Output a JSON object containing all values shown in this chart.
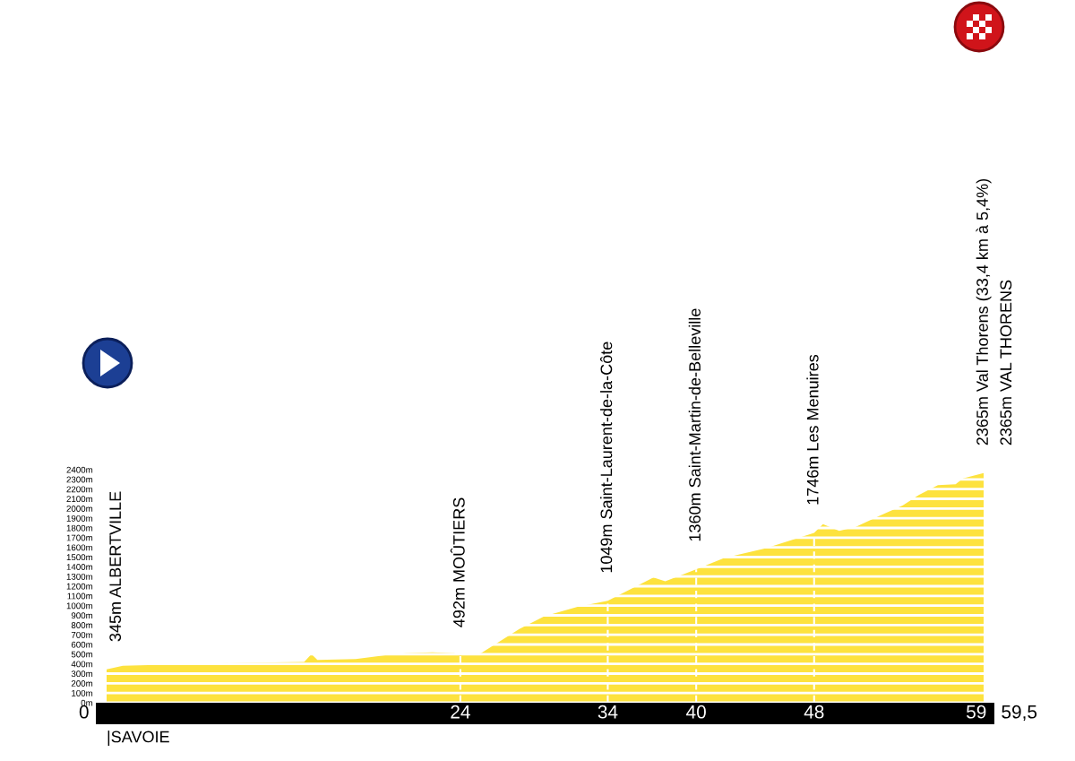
{
  "chart_data": {
    "type": "area",
    "x": [
      0,
      1.1,
      5.7,
      9.2,
      13.4,
      13.9,
      14.3,
      16.9,
      19.5,
      20.3,
      22.1,
      23.6,
      24,
      25.4,
      28,
      29.7,
      32,
      34,
      37.1,
      37.9,
      40.1,
      41.9,
      44.7,
      47,
      48,
      48.6,
      49.7,
      50.8,
      52.5,
      54,
      55.1,
      56.4,
      57.6,
      58.1,
      59.5
    ],
    "values": [
      345,
      380,
      400,
      410,
      420,
      500,
      440,
      450,
      500,
      510,
      520,
      510,
      490,
      510,
      760,
      890,
      990,
      1050,
      1290,
      1250,
      1380,
      1490,
      1590,
      1700,
      1750,
      1840,
      1770,
      1810,
      1930,
      2030,
      2140,
      2240,
      2250,
      2310,
      2365
    ],
    "color": "#fde23e",
    "xlim": [
      0,
      59.5
    ],
    "xticks": [
      24,
      34,
      40,
      48,
      59
    ],
    "ylim": [
      0,
      2400
    ],
    "yticks": [
      {
        "value": 0,
        "label": "0m"
      },
      {
        "value": 100,
        "label": "100m"
      },
      {
        "value": 200,
        "label": "200m"
      },
      {
        "value": 300,
        "label": "300m"
      },
      {
        "value": 400,
        "label": "400m"
      },
      {
        "value": 500,
        "label": "500m"
      },
      {
        "value": 600,
        "label": "600m"
      },
      {
        "value": 700,
        "label": "700m"
      },
      {
        "value": 800,
        "label": "800m"
      },
      {
        "value": 900,
        "label": "900m"
      },
      {
        "value": 1000,
        "label": "1000m"
      },
      {
        "value": 1100,
        "label": "1100m"
      },
      {
        "value": 1200,
        "label": "1200m"
      },
      {
        "value": 1300,
        "label": "1300m"
      },
      {
        "value": 1400,
        "label": "1400m"
      },
      {
        "value": 1500,
        "label": "1500m"
      },
      {
        "value": 1600,
        "label": "1600m"
      },
      {
        "value": 1700,
        "label": "1700m"
      },
      {
        "value": 1800,
        "label": "1800m"
      },
      {
        "value": 1900,
        "label": "1900m"
      },
      {
        "value": 2000,
        "label": "2000m"
      },
      {
        "value": 2100,
        "label": "2100m"
      },
      {
        "value": 2200,
        "label": "2200m"
      },
      {
        "value": 2300,
        "label": "2300m"
      },
      {
        "value": 2400,
        "label": "2400m"
      }
    ],
    "grid": "y",
    "ref_lines": [
      {
        "axis": "x",
        "value": 24,
        "color": "#ffffff",
        "line_style": "dashed"
      },
      {
        "axis": "x",
        "value": 34,
        "color": "#ffffff",
        "line_style": "dashed"
      },
      {
        "axis": "x",
        "value": 40,
        "color": "#ffffff",
        "line_style": "dashed"
      },
      {
        "axis": "x",
        "value": 48,
        "color": "#ffffff",
        "line_style": "dashed"
      }
    ],
    "annotations": [
      {
        "text": "345m ALBERTVILLE",
        "x": 0,
        "y": 345
      },
      {
        "text": "492m MOÛTIERS",
        "x": 24,
        "y": 492
      },
      {
        "text": "1049m Saint-Laurent-de-la-Côte",
        "x": 34,
        "y": 1049
      },
      {
        "text": "1360m Saint-Martin-de-Belleville",
        "x": 40,
        "y": 1360
      },
      {
        "text": "1746m Les Menuires",
        "x": 48,
        "y": 1746
      },
      {
        "text": "2365m Val Thorens (33,4 km à 5,4%)",
        "x": 59.5,
        "y": 2365
      },
      {
        "text": "2365m VAL THORENS",
        "x": 59.5,
        "y": 2365
      },
      {
        "text": "0",
        "x": 0,
        "y": 0
      },
      {
        "text": "59,5",
        "x": 59.5,
        "y": 0
      },
      "|SAVOIE"
    ]
  }
}
